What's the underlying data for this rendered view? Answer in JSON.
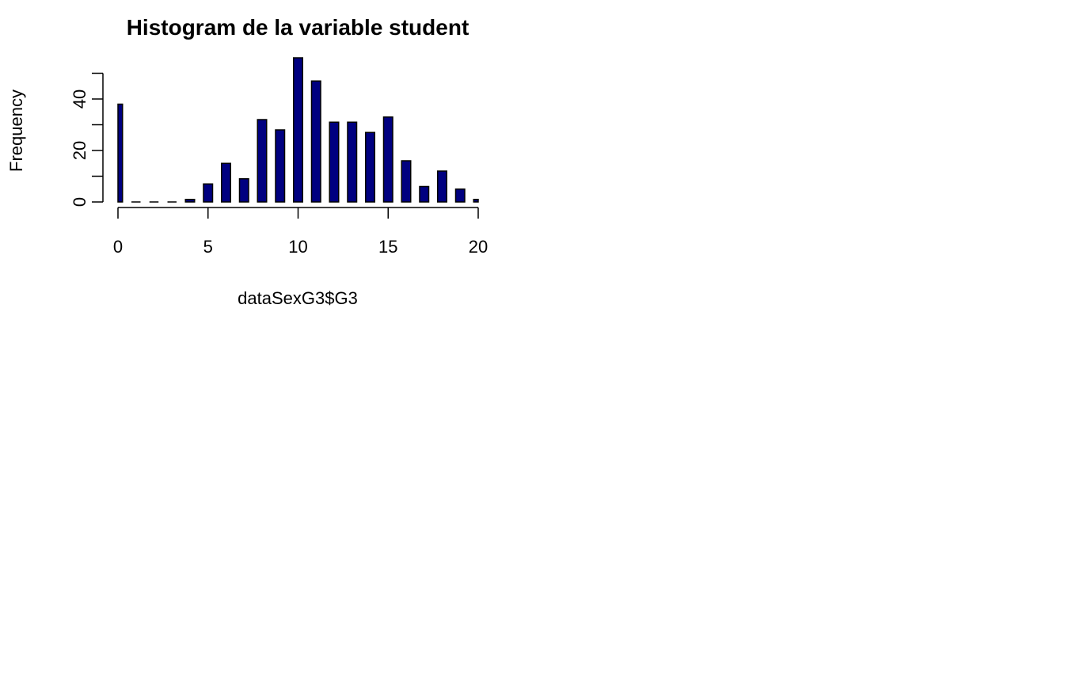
{
  "chart_data": {
    "type": "bar",
    "title": "Histogram de la variable student",
    "xlabel": "dataSexG3$G3",
    "ylabel": "Frequency",
    "x": [
      0,
      1,
      2,
      3,
      4,
      5,
      6,
      7,
      8,
      9,
      10,
      11,
      12,
      13,
      14,
      15,
      16,
      17,
      18,
      19,
      20
    ],
    "values": [
      38,
      0,
      0,
      0,
      1,
      7,
      15,
      9,
      32,
      28,
      56,
      47,
      31,
      31,
      27,
      33,
      16,
      6,
      12,
      5,
      1
    ],
    "xlim": [
      0,
      20
    ],
    "ylim": [
      0,
      50
    ],
    "x_ticks": [
      "0",
      "5",
      "10",
      "15",
      "20"
    ],
    "y_ticks": [
      "0",
      "20",
      "40"
    ],
    "grid": false,
    "bar_color": "#000080",
    "border_color": "#000000"
  }
}
